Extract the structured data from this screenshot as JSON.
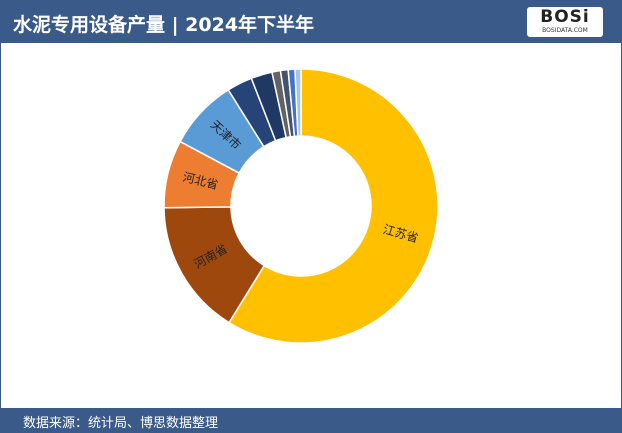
{
  "header": {
    "title": "水泥专用设备产量 | 2024年下半年",
    "logo": "BOSi",
    "logo_sub": "BOSIDATA.COM"
  },
  "footer": {
    "source": "数据来源：统计局、博思数据整理"
  },
  "chart_data": {
    "type": "donut",
    "categories": [
      "江苏省",
      "河南省",
      "河北省",
      "天津市",
      null,
      null,
      null,
      null,
      null,
      null
    ],
    "values": [
      58.8,
      16,
      8,
      8.3,
      3,
      2.5,
      1,
      0.9,
      0.8,
      0.7
    ],
    "colors": [
      "#ffc000",
      "#9e480e",
      "#ed7d31",
      "#5b9bd5",
      "#264478",
      "#1f3864",
      "#636363",
      "#44546a",
      "#4472c4",
      "#a5c4e8"
    ]
  }
}
